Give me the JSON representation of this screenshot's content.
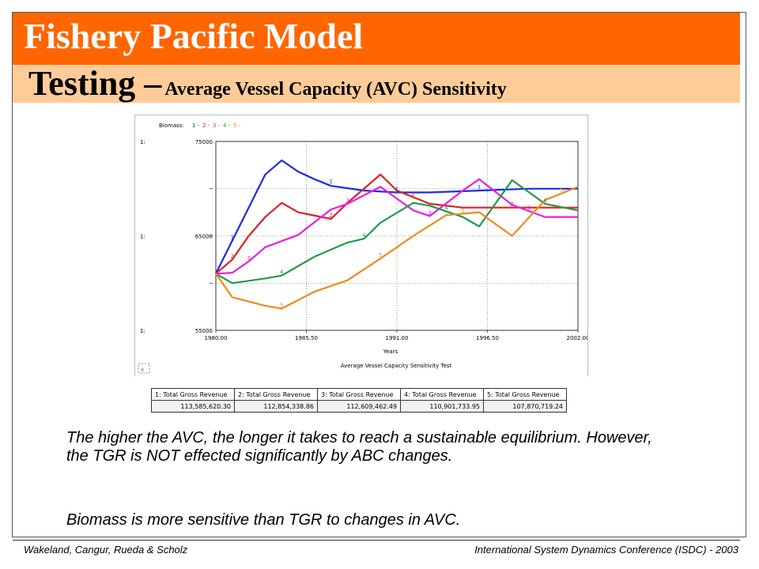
{
  "slide": {
    "title": "Fishery Pacific Model",
    "subtitle_main": "Testing –",
    "subtitle_rest": "Average Vessel Capacity (AVC) Sensitivity",
    "para1": "The higher the AVC, the longer it takes to reach a sustainable equilibrium. However, the TGR is NOT effected significantly by ABC changes.",
    "para2": "Biomass is more sensitive than TGR to changes in AVC.",
    "footer_left": "Wakeland, Cangur, Rueda & Scholz",
    "footer_right": "International System Dynamics Conference (ISDC) - 2003"
  },
  "chart_data": {
    "type": "line",
    "title": "Average Vessel Capacity Sensitivity Test",
    "xlabel": "Years",
    "legend_prefix": "Biomass:",
    "axis_prefix": "1:",
    "xlim": [
      1980,
      2002
    ],
    "ylim": [
      55000,
      75000
    ],
    "x_ticks": [
      {
        "value": 1980,
        "label": "1980.00"
      },
      {
        "value": 1985.5,
        "label": "1985.50"
      },
      {
        "value": 1991,
        "label": "1991.00"
      },
      {
        "value": 1996.5,
        "label": "1996.50"
      },
      {
        "value": 2002,
        "label": "2002.00"
      }
    ],
    "y_ticks": [
      {
        "value": 75000,
        "label": "75000"
      },
      {
        "value": 65000,
        "label": "65000"
      },
      {
        "value": 55000,
        "label": "55000"
      }
    ],
    "grid": true,
    "series": [
      {
        "name": "1",
        "color": "#1f2be0",
        "x": [
          1980,
          1981,
          1983,
          1984,
          1985,
          1986,
          1987,
          1989,
          1991,
          1993,
          1996,
          1999,
          2002
        ],
        "y": [
          61000,
          64500,
          71500,
          73000,
          71800,
          71000,
          70300,
          69800,
          69600,
          69600,
          69800,
          70000,
          70000
        ]
      },
      {
        "name": "2",
        "color": "#e01f1f",
        "x": [
          1980,
          1981,
          1982,
          1983,
          1984,
          1985,
          1987,
          1988,
          1990,
          1991,
          1993,
          1995,
          1997,
          2000,
          2002
        ],
        "y": [
          61000,
          62500,
          65000,
          67000,
          68500,
          67500,
          66800,
          68500,
          71500,
          69800,
          68400,
          68000,
          68000,
          68000,
          68000
        ]
      },
      {
        "name": "3",
        "color": "#e81fe0",
        "x": [
          1980,
          1981,
          1982,
          1983,
          1985,
          1987,
          1988,
          1990,
          1992,
          1993,
          1995,
          1996,
          1998,
          2000,
          2002
        ],
        "y": [
          61000,
          61100,
          62300,
          63800,
          65100,
          67800,
          68400,
          70200,
          67700,
          67100,
          69800,
          71000,
          68300,
          67000,
          67000
        ]
      },
      {
        "name": "4",
        "color": "#1f9a4a",
        "x": [
          1980,
          1981,
          1983,
          1984,
          1986,
          1988,
          1989,
          1990,
          1992,
          1993,
          1995,
          1996,
          1998,
          2000,
          2002
        ],
        "y": [
          61000,
          60000,
          60500,
          60800,
          62800,
          64300,
          64700,
          66400,
          68500,
          68200,
          67000,
          66000,
          70900,
          68400,
          67700
        ]
      },
      {
        "name": "5",
        "color": "#f08a1a",
        "x": [
          1980,
          1981,
          1983,
          1984,
          1986,
          1988,
          1990,
          1992,
          1994,
          1996,
          1998,
          2000,
          2002
        ],
        "y": [
          61000,
          58500,
          57600,
          57300,
          59100,
          60300,
          62600,
          65000,
          67200,
          67500,
          65000,
          68800,
          70200
        ]
      }
    ],
    "labels": [
      {
        "s": 0,
        "x": 1981,
        "y": 64500,
        "t": "1"
      },
      {
        "s": 0,
        "x": 1987,
        "y": 70400,
        "t": "1"
      },
      {
        "s": 0,
        "x": 1991,
        "y": 69600,
        "t": "1"
      },
      {
        "s": 0,
        "x": 1996,
        "y": 69800,
        "t": "1"
      },
      {
        "s": 1,
        "x": 1981,
        "y": 62500,
        "t": "2"
      },
      {
        "s": 1,
        "x": 1987,
        "y": 66800,
        "t": "2"
      },
      {
        "s": 1,
        "x": 1992,
        "y": 69100,
        "t": "2"
      },
      {
        "s": 1,
        "x": 1998,
        "y": 68000,
        "t": "2"
      },
      {
        "s": 2,
        "x": 1982,
        "y": 62300,
        "t": "3"
      },
      {
        "s": 2,
        "x": 1988,
        "y": 68400,
        "t": "3"
      },
      {
        "s": 2,
        "x": 1993,
        "y": 67100,
        "t": "3"
      },
      {
        "s": 2,
        "x": 1999,
        "y": 67600,
        "t": "3"
      },
      {
        "s": 3,
        "x": 1984,
        "y": 60800,
        "t": "4"
      },
      {
        "s": 3,
        "x": 1989,
        "y": 64700,
        "t": "4"
      },
      {
        "s": 3,
        "x": 1994,
        "y": 67600,
        "t": "4"
      },
      {
        "s": 3,
        "x": 2000,
        "y": 68400,
        "t": "4"
      },
      {
        "s": 4,
        "x": 1984,
        "y": 57300,
        "t": "5"
      },
      {
        "s": 4,
        "x": 1990,
        "y": 62600,
        "t": "5"
      },
      {
        "s": 4,
        "x": 1995,
        "y": 67300,
        "t": "5"
      },
      {
        "s": 4,
        "x": 2001,
        "y": 69500,
        "t": "5"
      }
    ],
    "footnote": "x"
  },
  "tgr_table": {
    "headers": [
      "1: Total Gross  Revenue",
      "2: Total Gross  Revenue",
      "3: Total Gross  Revenue",
      "4: Total Gross  Revenue",
      "5: Total Gross  Revenue"
    ],
    "values": [
      "113,585,620.30",
      "112,854,338.86",
      "112,609,462.49",
      "110,901,733.95",
      "107,870,719.24"
    ]
  }
}
